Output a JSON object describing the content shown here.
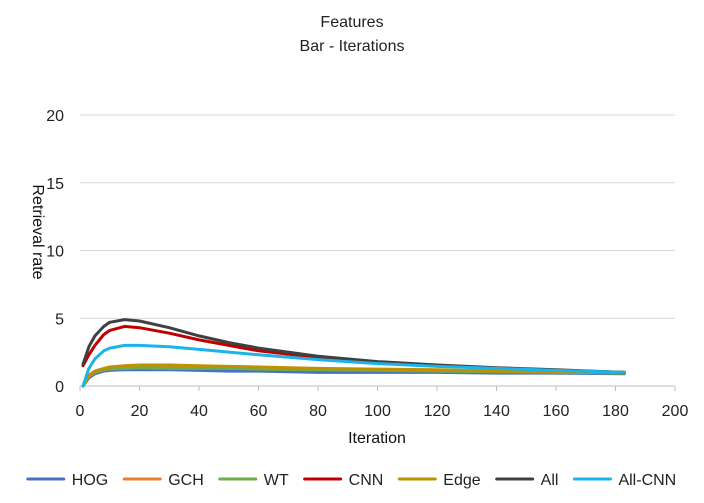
{
  "chart_data": {
    "type": "line",
    "title": "Features",
    "subtitle": "Bar - Iterations",
    "xlabel": "Iteration",
    "ylabel": "Retrieval rate",
    "xlim": [
      0,
      200
    ],
    "ylim": [
      0,
      20
    ],
    "xticks": [
      0,
      20,
      40,
      60,
      80,
      100,
      120,
      140,
      160,
      180,
      200
    ],
    "yticks": [
      0,
      5,
      10,
      15,
      20
    ],
    "grid": "horizontal",
    "legend_position": "bottom",
    "series": [
      {
        "name": "HOG",
        "color": "#4472C4",
        "x": [
          1,
          3,
          5,
          8,
          10,
          15,
          20,
          30,
          40,
          50,
          60,
          80,
          100,
          120,
          140,
          160,
          183
        ],
        "values": [
          0.0,
          0.6,
          0.9,
          1.1,
          1.15,
          1.2,
          1.2,
          1.2,
          1.15,
          1.1,
          1.1,
          1.0,
          1.0,
          1.0,
          0.95,
          0.95,
          0.9
        ]
      },
      {
        "name": "GCH",
        "color": "#ED7D31",
        "x": [
          1,
          3,
          5,
          8,
          10,
          15,
          20,
          30,
          40,
          50,
          60,
          80,
          100,
          120,
          140,
          160,
          183
        ],
        "values": [
          0.0,
          0.7,
          1.0,
          1.2,
          1.25,
          1.3,
          1.35,
          1.35,
          1.35,
          1.35,
          1.3,
          1.25,
          1.2,
          1.15,
          1.1,
          1.05,
          1.0
        ]
      },
      {
        "name": "WT",
        "color": "#70AD47",
        "x": [
          1,
          3,
          5,
          8,
          10,
          15,
          20,
          30,
          40,
          50,
          60,
          80,
          100,
          120,
          140,
          160,
          183
        ],
        "values": [
          0.0,
          0.8,
          1.0,
          1.2,
          1.25,
          1.3,
          1.35,
          1.3,
          1.3,
          1.3,
          1.25,
          1.2,
          1.15,
          1.1,
          1.05,
          1.0,
          0.95
        ]
      },
      {
        "name": "CNN",
        "color": "#C00000",
        "x": [
          1,
          3,
          5,
          8,
          10,
          15,
          20,
          30,
          40,
          50,
          60,
          80,
          100,
          120,
          140,
          160,
          183
        ],
        "values": [
          1.5,
          2.3,
          3.0,
          3.8,
          4.1,
          4.4,
          4.3,
          3.9,
          3.4,
          3.0,
          2.6,
          2.1,
          1.75,
          1.5,
          1.3,
          1.15,
          1.0
        ]
      },
      {
        "name": "Edge",
        "color": "#BF9000",
        "x": [
          1,
          3,
          5,
          8,
          10,
          15,
          20,
          30,
          40,
          50,
          60,
          80,
          100,
          120,
          140,
          160,
          183
        ],
        "values": [
          0.0,
          0.8,
          1.1,
          1.3,
          1.4,
          1.5,
          1.55,
          1.55,
          1.5,
          1.45,
          1.4,
          1.3,
          1.25,
          1.2,
          1.1,
          1.05,
          1.0
        ]
      },
      {
        "name": "All",
        "color": "#404040",
        "x": [
          1,
          3,
          5,
          8,
          10,
          15,
          20,
          30,
          40,
          50,
          60,
          80,
          100,
          120,
          140,
          160,
          183
        ],
        "values": [
          1.6,
          2.9,
          3.7,
          4.4,
          4.7,
          4.9,
          4.8,
          4.3,
          3.7,
          3.2,
          2.8,
          2.2,
          1.8,
          1.55,
          1.35,
          1.2,
          1.0
        ]
      },
      {
        "name": "All-CNN",
        "color": "#1CB4E8",
        "x": [
          1,
          3,
          5,
          8,
          10,
          15,
          20,
          30,
          40,
          50,
          60,
          80,
          100,
          120,
          140,
          160,
          183
        ],
        "values": [
          0.0,
          1.3,
          2.0,
          2.6,
          2.8,
          3.0,
          3.0,
          2.9,
          2.7,
          2.5,
          2.3,
          1.95,
          1.65,
          1.45,
          1.3,
          1.15,
          1.0
        ]
      }
    ]
  }
}
